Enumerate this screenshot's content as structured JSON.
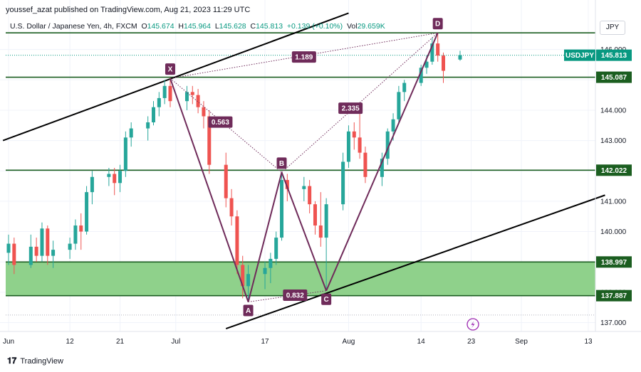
{
  "header": {
    "publisher_line": "youssef_azat published on TradingView.com, Aug 21, 2023 11:29 UTC"
  },
  "legend": {
    "instrument": "U.S. Dollar / Japanese Yen, 4h, FXCM",
    "open_label": "O",
    "open": "145.674",
    "high_label": "H",
    "high": "145.964",
    "low_label": "L",
    "low": "145.628",
    "close_label": "C",
    "close": "145.813",
    "change": "+0.139 (+0.10%)",
    "vol_label": "Vol",
    "volume": "29.659K"
  },
  "currency_button": "JPY",
  "footer": {
    "brand": "TradingView"
  },
  "colors": {
    "level_line": "#1b5e20",
    "zone_fill": "#8fd18b",
    "pattern": "#6f2b5a",
    "channel": "#000000",
    "up_candle": "#26a69a",
    "down_candle": "#ef5350",
    "price_tag": "#089981"
  },
  "chart_data": {
    "type": "candlestick",
    "symbol": "USDJPY",
    "timeframe": "4h",
    "y_axis": {
      "ticks": [
        137.0,
        138.0,
        139.0,
        140.0,
        141.0,
        142.0,
        143.0,
        144.0,
        145.0,
        146.0
      ],
      "tick_labels": [
        "137.000",
        "138.000",
        "139.000",
        "140.000",
        "141.000",
        "142.000",
        "143.000",
        "144.000",
        "145.000",
        "146.000"
      ],
      "range": [
        136.8,
        146.9
      ]
    },
    "x_axis": {
      "labels": [
        "Jun",
        "12",
        "21",
        "Jul",
        "17",
        "Aug",
        "14",
        "23",
        "Sep",
        "13"
      ],
      "label_dates": [
        "2023-06-01",
        "2023-06-12",
        "2023-06-21",
        "2023-07-01",
        "2023-07-17",
        "2023-08-01",
        "2023-08-14",
        "2023-08-23",
        "2023-09-01",
        "2023-09-13"
      ]
    },
    "last_price_tag": {
      "symbol": "USDJPY",
      "value": "145.813"
    },
    "horizontal_levels": [
      {
        "value": 146.55,
        "label": ""
      },
      {
        "value": 145.087,
        "label": "145.087"
      },
      {
        "value": 142.022,
        "label": "142.022"
      },
      {
        "value": 138.997,
        "label": "138.997"
      },
      {
        "value": 137.887,
        "label": "137.887"
      }
    ],
    "zone": {
      "from": 137.887,
      "to": 138.997
    },
    "harmonic_pattern": {
      "points": [
        {
          "label": "X",
          "date": "2023-06-30",
          "price": 145.05
        },
        {
          "label": "A",
          "date": "2023-07-14",
          "price": 137.68
        },
        {
          "label": "B",
          "date": "2023-07-20",
          "price": 141.95
        },
        {
          "label": "C",
          "date": "2023-07-28",
          "price": 138.05
        },
        {
          "label": "D",
          "date": "2023-08-17",
          "price": 146.55
        }
      ],
      "ratios": [
        {
          "value": "0.563",
          "between": "X-B"
        },
        {
          "value": "0.832",
          "between": "A-C"
        },
        {
          "value": "2.335",
          "between": "B-D"
        },
        {
          "value": "1.189",
          "between": "X-D"
        }
      ]
    },
    "channel_lines": [
      {
        "from": {
          "date": "2023-05-31",
          "price": 143.0
        },
        "to": {
          "date": "2023-08-01",
          "price": 147.2
        }
      },
      {
        "from": {
          "date": "2023-07-10",
          "price": 136.8
        },
        "to": {
          "date": "2023-09-16",
          "price": 141.2
        }
      }
    ],
    "candles": [
      {
        "d": "2023-06-01",
        "o": 139.3,
        "h": 139.9,
        "l": 138.9,
        "c": 139.6
      },
      {
        "d": "2023-06-02",
        "o": 139.6,
        "h": 139.8,
        "l": 138.6,
        "c": 138.9
      },
      {
        "d": "2023-06-05",
        "o": 138.9,
        "h": 139.9,
        "l": 138.8,
        "c": 139.5
      },
      {
        "d": "2023-06-06",
        "o": 139.5,
        "h": 139.8,
        "l": 139.0,
        "c": 139.2
      },
      {
        "d": "2023-06-07",
        "o": 139.2,
        "h": 140.3,
        "l": 139.0,
        "c": 140.1
      },
      {
        "d": "2023-06-08",
        "o": 140.1,
        "h": 140.2,
        "l": 138.9,
        "c": 139.2
      },
      {
        "d": "2023-06-09",
        "o": 139.2,
        "h": 139.7,
        "l": 138.8,
        "c": 139.4
      },
      {
        "d": "2023-06-12",
        "o": 139.4,
        "h": 139.8,
        "l": 139.1,
        "c": 139.6
      },
      {
        "d": "2023-06-13",
        "o": 139.6,
        "h": 140.4,
        "l": 139.4,
        "c": 140.2
      },
      {
        "d": "2023-06-14",
        "o": 140.2,
        "h": 140.6,
        "l": 139.4,
        "c": 140.0
      },
      {
        "d": "2023-06-15",
        "o": 140.0,
        "h": 141.5,
        "l": 139.9,
        "c": 141.3
      },
      {
        "d": "2023-06-16",
        "o": 141.3,
        "h": 142.0,
        "l": 140.9,
        "c": 141.8
      },
      {
        "d": "2023-06-19",
        "o": 141.8,
        "h": 142.1,
        "l": 141.5,
        "c": 141.9
      },
      {
        "d": "2023-06-20",
        "o": 141.9,
        "h": 142.1,
        "l": 141.2,
        "c": 141.6
      },
      {
        "d": "2023-06-21",
        "o": 141.6,
        "h": 142.2,
        "l": 141.3,
        "c": 142.0
      },
      {
        "d": "2023-06-22",
        "o": 142.0,
        "h": 143.3,
        "l": 141.8,
        "c": 143.1
      },
      {
        "d": "2023-06-23",
        "o": 143.1,
        "h": 143.6,
        "l": 142.8,
        "c": 143.4
      },
      {
        "d": "2023-06-26",
        "o": 143.4,
        "h": 143.8,
        "l": 143.0,
        "c": 143.6
      },
      {
        "d": "2023-06-27",
        "o": 143.6,
        "h": 144.3,
        "l": 143.5,
        "c": 144.1
      },
      {
        "d": "2023-06-28",
        "o": 144.1,
        "h": 144.6,
        "l": 143.8,
        "c": 144.4
      },
      {
        "d": "2023-06-29",
        "o": 144.4,
        "h": 145.0,
        "l": 144.2,
        "c": 144.8
      },
      {
        "d": "2023-06-30",
        "o": 144.8,
        "h": 145.07,
        "l": 144.1,
        "c": 144.3
      },
      {
        "d": "2023-07-03",
        "o": 144.3,
        "h": 144.8,
        "l": 144.0,
        "c": 144.6
      },
      {
        "d": "2023-07-04",
        "o": 144.6,
        "h": 144.8,
        "l": 144.2,
        "c": 144.5
      },
      {
        "d": "2023-07-05",
        "o": 144.5,
        "h": 144.7,
        "l": 143.9,
        "c": 144.1
      },
      {
        "d": "2023-07-06",
        "o": 144.1,
        "h": 144.3,
        "l": 143.4,
        "c": 143.8
      },
      {
        "d": "2023-07-07",
        "o": 143.8,
        "h": 144.0,
        "l": 141.9,
        "c": 142.2
      },
      {
        "d": "2023-07-10",
        "o": 142.2,
        "h": 142.6,
        "l": 140.8,
        "c": 141.1
      },
      {
        "d": "2023-07-11",
        "o": 141.1,
        "h": 141.4,
        "l": 140.2,
        "c": 140.5
      },
      {
        "d": "2023-07-12",
        "o": 140.5,
        "h": 140.7,
        "l": 138.6,
        "c": 138.9
      },
      {
        "d": "2023-07-13",
        "o": 138.9,
        "h": 139.2,
        "l": 137.8,
        "c": 138.2
      },
      {
        "d": "2023-07-14",
        "o": 138.2,
        "h": 138.9,
        "l": 137.68,
        "c": 138.6
      },
      {
        "d": "2023-07-17",
        "o": 138.6,
        "h": 139.0,
        "l": 138.1,
        "c": 138.8
      },
      {
        "d": "2023-07-18",
        "o": 138.8,
        "h": 139.3,
        "l": 138.3,
        "c": 139.1
      },
      {
        "d": "2023-07-19",
        "o": 139.1,
        "h": 140.0,
        "l": 138.9,
        "c": 139.8
      },
      {
        "d": "2023-07-20",
        "o": 139.8,
        "h": 141.95,
        "l": 139.7,
        "c": 141.7
      },
      {
        "d": "2023-07-21",
        "o": 141.7,
        "h": 141.9,
        "l": 141.0,
        "c": 141.4
      },
      {
        "d": "2023-07-24",
        "o": 141.4,
        "h": 141.8,
        "l": 141.0,
        "c": 141.5
      },
      {
        "d": "2023-07-25",
        "o": 141.5,
        "h": 141.7,
        "l": 140.6,
        "c": 140.9
      },
      {
        "d": "2023-07-26",
        "o": 140.9,
        "h": 141.0,
        "l": 139.9,
        "c": 140.2
      },
      {
        "d": "2023-07-27",
        "o": 140.2,
        "h": 141.3,
        "l": 139.5,
        "c": 139.8
      },
      {
        "d": "2023-07-28",
        "o": 139.8,
        "h": 141.1,
        "l": 138.05,
        "c": 140.9
      },
      {
        "d": "2023-07-31",
        "o": 140.9,
        "h": 142.6,
        "l": 140.7,
        "c": 142.3
      },
      {
        "d": "2023-08-01",
        "o": 142.3,
        "h": 143.5,
        "l": 142.1,
        "c": 143.3
      },
      {
        "d": "2023-08-02",
        "o": 143.3,
        "h": 143.6,
        "l": 142.7,
        "c": 143.1
      },
      {
        "d": "2023-08-03",
        "o": 143.1,
        "h": 143.9,
        "l": 142.4,
        "c": 142.6
      },
      {
        "d": "2023-08-04",
        "o": 142.6,
        "h": 142.8,
        "l": 141.6,
        "c": 141.8
      },
      {
        "d": "2023-08-07",
        "o": 141.8,
        "h": 142.6,
        "l": 141.5,
        "c": 142.4
      },
      {
        "d": "2023-08-08",
        "o": 142.4,
        "h": 143.4,
        "l": 142.2,
        "c": 143.3
      },
      {
        "d": "2023-08-09",
        "o": 143.3,
        "h": 143.9,
        "l": 143.0,
        "c": 143.7
      },
      {
        "d": "2023-08-10",
        "o": 143.7,
        "h": 144.8,
        "l": 143.6,
        "c": 144.6
      },
      {
        "d": "2023-08-11",
        "o": 144.6,
        "h": 145.0,
        "l": 144.3,
        "c": 144.9
      },
      {
        "d": "2023-08-14",
        "o": 144.9,
        "h": 145.5,
        "l": 144.8,
        "c": 145.4
      },
      {
        "d": "2023-08-15",
        "o": 145.4,
        "h": 145.8,
        "l": 145.2,
        "c": 145.6
      },
      {
        "d": "2023-08-16",
        "o": 145.6,
        "h": 146.4,
        "l": 145.5,
        "c": 146.2
      },
      {
        "d": "2023-08-17",
        "o": 146.2,
        "h": 146.55,
        "l": 145.6,
        "c": 145.8
      },
      {
        "d": "2023-08-18",
        "o": 145.8,
        "h": 145.9,
        "l": 144.9,
        "c": 145.3
      },
      {
        "d": "2023-08-21",
        "o": 145.67,
        "h": 145.96,
        "l": 145.63,
        "c": 145.81
      }
    ]
  }
}
